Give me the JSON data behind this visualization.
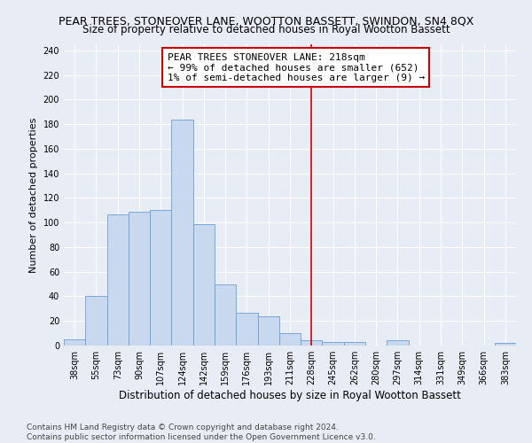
{
  "title": "PEAR TREES, STONEOVER LANE, WOOTTON BASSETT, SWINDON, SN4 8QX",
  "subtitle": "Size of property relative to detached houses in Royal Wootton Bassett",
  "xlabel": "Distribution of detached houses by size in Royal Wootton Bassett",
  "ylabel": "Number of detached properties",
  "footer1": "Contains HM Land Registry data © Crown copyright and database right 2024.",
  "footer2": "Contains public sector information licensed under the Open Government Licence v3.0.",
  "categories": [
    "38sqm",
    "55sqm",
    "73sqm",
    "90sqm",
    "107sqm",
    "124sqm",
    "142sqm",
    "159sqm",
    "176sqm",
    "193sqm",
    "211sqm",
    "228sqm",
    "245sqm",
    "262sqm",
    "280sqm",
    "297sqm",
    "314sqm",
    "331sqm",
    "349sqm",
    "366sqm",
    "383sqm"
  ],
  "values": [
    5,
    40,
    107,
    109,
    110,
    184,
    99,
    50,
    27,
    24,
    10,
    4,
    3,
    3,
    0,
    4,
    0,
    0,
    0,
    0,
    2
  ],
  "bar_color": "#c8d9ef",
  "bar_edge_color": "#6b9fd4",
  "vline_x_index": 11.0,
  "vline_color": "#cc0000",
  "annotation_text": "PEAR TREES STONEOVER LANE: 218sqm\n← 99% of detached houses are smaller (652)\n1% of semi-detached houses are larger (9) →",
  "annotation_box_color": "white",
  "annotation_box_edgecolor": "#cc0000",
  "ylim": [
    0,
    245
  ],
  "yticks": [
    0,
    20,
    40,
    60,
    80,
    100,
    120,
    140,
    160,
    180,
    200,
    220,
    240
  ],
  "background_color": "#e8edf5",
  "axes_background_color": "#e8edf5",
  "grid_color": "white",
  "title_fontsize": 9,
  "subtitle_fontsize": 8.5,
  "xlabel_fontsize": 8.5,
  "ylabel_fontsize": 8,
  "tick_fontsize": 7,
  "annotation_fontsize": 8,
  "footer_fontsize": 6.5
}
